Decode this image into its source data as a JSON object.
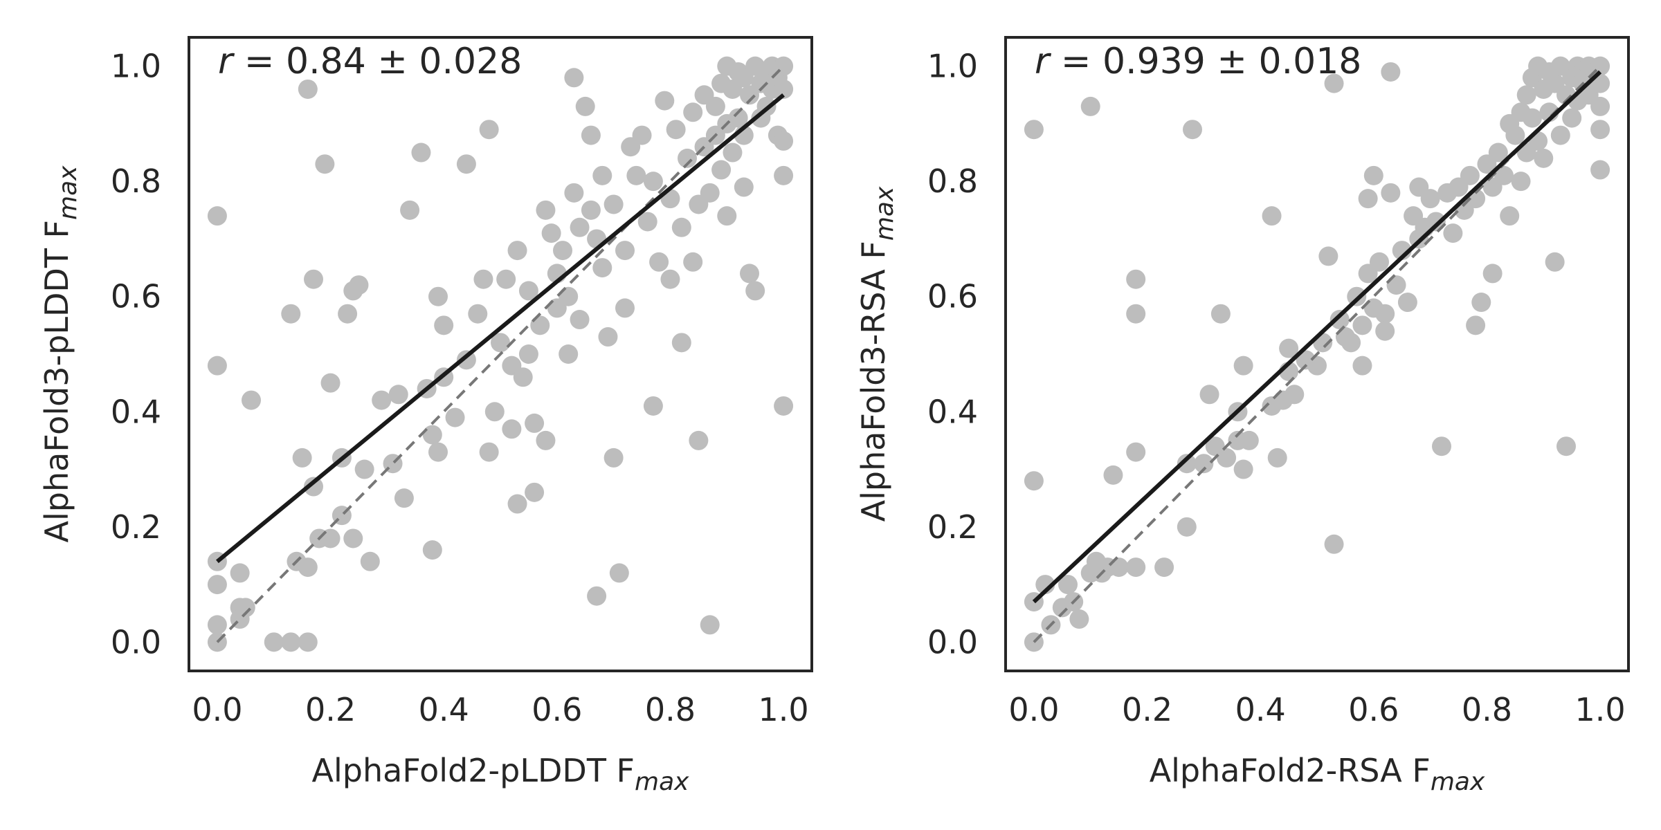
{
  "colors": {
    "point": "#bdbdbd",
    "fit_line": "#1a1a1a",
    "identity_line": "#777777",
    "axes": "#262626",
    "background": "#ffffff"
  },
  "chart_data": [
    {
      "type": "scatter",
      "xlabel_main": "AlphaFold2-pLDDT F",
      "xlabel_sub": "max",
      "ylabel_main": "AlphaFold3-pLDDT F",
      "ylabel_sub": "max",
      "annotation": "r = 0.84 ± 0.028",
      "xlim": [
        -0.05,
        1.05
      ],
      "ylim": [
        -0.05,
        1.05
      ],
      "xticks": [
        0.0,
        0.2,
        0.4,
        0.6,
        0.8,
        1.0
      ],
      "yticks": [
        0.0,
        0.2,
        0.4,
        0.6,
        0.8,
        1.0
      ],
      "xtick_labels": [
        "0.0",
        "0.2",
        "0.4",
        "0.6",
        "0.8",
        "1.0"
      ],
      "ytick_labels": [
        "0.0",
        "0.2",
        "0.4",
        "0.6",
        "0.8",
        "1.0"
      ],
      "identity_line": [
        [
          0,
          0
        ],
        [
          1,
          1
        ]
      ],
      "fit_line": [
        [
          0,
          0.14
        ],
        [
          1,
          0.95
        ]
      ],
      "grid": false,
      "points": [
        [
          0.0,
          0.74
        ],
        [
          0.0,
          0.48
        ],
        [
          0.0,
          0.14
        ],
        [
          0.0,
          0.1
        ],
        [
          0.0,
          0.03
        ],
        [
          0.0,
          0.0
        ],
        [
          0.04,
          0.12
        ],
        [
          0.04,
          0.06
        ],
        [
          0.04,
          0.04
        ],
        [
          0.05,
          0.06
        ],
        [
          0.06,
          0.42
        ],
        [
          0.1,
          0.0
        ],
        [
          0.13,
          0.0
        ],
        [
          0.16,
          0.0
        ],
        [
          0.13,
          0.57
        ],
        [
          0.14,
          0.14
        ],
        [
          0.15,
          0.32
        ],
        [
          0.16,
          0.96
        ],
        [
          0.16,
          0.13
        ],
        [
          0.17,
          0.63
        ],
        [
          0.17,
          0.27
        ],
        [
          0.18,
          0.18
        ],
        [
          0.19,
          0.83
        ],
        [
          0.2,
          0.45
        ],
        [
          0.2,
          0.18
        ],
        [
          0.22,
          0.32
        ],
        [
          0.22,
          0.22
        ],
        [
          0.23,
          0.57
        ],
        [
          0.24,
          0.61
        ],
        [
          0.25,
          0.62
        ],
        [
          0.24,
          0.18
        ],
        [
          0.26,
          0.3
        ],
        [
          0.27,
          0.14
        ],
        [
          0.29,
          0.42
        ],
        [
          0.31,
          0.31
        ],
        [
          0.32,
          0.43
        ],
        [
          0.33,
          0.25
        ],
        [
          0.34,
          0.75
        ],
        [
          0.36,
          0.85
        ],
        [
          0.37,
          0.44
        ],
        [
          0.38,
          0.16
        ],
        [
          0.38,
          0.36
        ],
        [
          0.39,
          0.6
        ],
        [
          0.39,
          0.33
        ],
        [
          0.4,
          0.55
        ],
        [
          0.4,
          0.46
        ],
        [
          0.42,
          0.39
        ],
        [
          0.44,
          0.49
        ],
        [
          0.44,
          0.83
        ],
        [
          0.46,
          0.57
        ],
        [
          0.47,
          0.63
        ],
        [
          0.48,
          0.89
        ],
        [
          0.48,
          0.33
        ],
        [
          0.49,
          0.4
        ],
        [
          0.5,
          0.52
        ],
        [
          0.51,
          0.63
        ],
        [
          0.52,
          0.48
        ],
        [
          0.52,
          0.37
        ],
        [
          0.53,
          0.68
        ],
        [
          0.53,
          0.24
        ],
        [
          0.54,
          0.46
        ],
        [
          0.55,
          0.61
        ],
        [
          0.55,
          0.5
        ],
        [
          0.56,
          0.38
        ],
        [
          0.56,
          0.26
        ],
        [
          0.57,
          0.55
        ],
        [
          0.58,
          0.35
        ],
        [
          0.58,
          0.75
        ],
        [
          0.59,
          0.71
        ],
        [
          0.6,
          0.64
        ],
        [
          0.6,
          0.58
        ],
        [
          0.61,
          0.68
        ],
        [
          0.62,
          0.6
        ],
        [
          0.62,
          0.5
        ],
        [
          0.63,
          0.98
        ],
        [
          0.63,
          0.78
        ],
        [
          0.64,
          0.72
        ],
        [
          0.64,
          0.56
        ],
        [
          0.65,
          0.93
        ],
        [
          0.66,
          0.75
        ],
        [
          0.66,
          0.88
        ],
        [
          0.67,
          0.7
        ],
        [
          0.67,
          0.08
        ],
        [
          0.68,
          0.81
        ],
        [
          0.68,
          0.65
        ],
        [
          0.69,
          0.53
        ],
        [
          0.7,
          0.76
        ],
        [
          0.7,
          0.32
        ],
        [
          0.71,
          0.12
        ],
        [
          0.72,
          0.68
        ],
        [
          0.72,
          0.58
        ],
        [
          0.73,
          0.86
        ],
        [
          0.74,
          0.81
        ],
        [
          0.75,
          0.88
        ],
        [
          0.76,
          0.73
        ],
        [
          0.77,
          0.8
        ],
        [
          0.77,
          0.41
        ],
        [
          0.78,
          0.66
        ],
        [
          0.79,
          0.94
        ],
        [
          0.8,
          0.77
        ],
        [
          0.8,
          0.63
        ],
        [
          0.81,
          0.89
        ],
        [
          0.82,
          0.72
        ],
        [
          0.82,
          0.52
        ],
        [
          0.83,
          0.84
        ],
        [
          0.84,
          0.92
        ],
        [
          0.84,
          0.66
        ],
        [
          0.85,
          0.76
        ],
        [
          0.85,
          0.35
        ],
        [
          0.86,
          0.95
        ],
        [
          0.86,
          0.86
        ],
        [
          0.87,
          0.78
        ],
        [
          0.87,
          0.03
        ],
        [
          0.88,
          0.93
        ],
        [
          0.88,
          0.88
        ],
        [
          0.89,
          0.97
        ],
        [
          0.89,
          0.82
        ],
        [
          0.9,
          1.0
        ],
        [
          0.9,
          0.9
        ],
        [
          0.9,
          0.74
        ],
        [
          0.91,
          0.96
        ],
        [
          0.91,
          0.85
        ],
        [
          0.92,
          0.99
        ],
        [
          0.92,
          0.91
        ],
        [
          0.93,
          0.98
        ],
        [
          0.93,
          0.88
        ],
        [
          0.93,
          0.79
        ],
        [
          0.94,
          0.95
        ],
        [
          0.94,
          0.64
        ],
        [
          0.95,
          1.0
        ],
        [
          0.95,
          0.61
        ],
        [
          0.96,
          0.97
        ],
        [
          0.96,
          0.91
        ],
        [
          0.97,
          0.99
        ],
        [
          0.97,
          0.93
        ],
        [
          0.98,
          1.0
        ],
        [
          0.98,
          0.96
        ],
        [
          0.99,
          0.98
        ],
        [
          0.99,
          0.88
        ],
        [
          1.0,
          1.0
        ],
        [
          1.0,
          0.96
        ],
        [
          1.0,
          0.87
        ],
        [
          1.0,
          0.81
        ],
        [
          1.0,
          0.41
        ]
      ]
    },
    {
      "type": "scatter",
      "xlabel_main": "AlphaFold2-RSA F",
      "xlabel_sub": "max",
      "ylabel_main": "AlphaFold3-RSA F",
      "ylabel_sub": "max",
      "annotation": "r = 0.939 ± 0.018",
      "xlim": [
        -0.05,
        1.05
      ],
      "ylim": [
        -0.05,
        1.05
      ],
      "xticks": [
        0.0,
        0.2,
        0.4,
        0.6,
        0.8,
        1.0
      ],
      "yticks": [
        0.0,
        0.2,
        0.4,
        0.6,
        0.8,
        1.0
      ],
      "xtick_labels": [
        "0.0",
        "0.2",
        "0.4",
        "0.6",
        "0.8",
        "1.0"
      ],
      "ytick_labels": [
        "0.0",
        "0.2",
        "0.4",
        "0.6",
        "0.8",
        "1.0"
      ],
      "identity_line": [
        [
          0,
          0
        ],
        [
          1,
          1
        ]
      ],
      "fit_line": [
        [
          0,
          0.07
        ],
        [
          1,
          0.99
        ]
      ],
      "grid": false,
      "points": [
        [
          0.0,
          0.89
        ],
        [
          0.0,
          0.28
        ],
        [
          0.0,
          0.07
        ],
        [
          0.0,
          0.0
        ],
        [
          0.02,
          0.1
        ],
        [
          0.03,
          0.03
        ],
        [
          0.05,
          0.06
        ],
        [
          0.06,
          0.1
        ],
        [
          0.07,
          0.07
        ],
        [
          0.08,
          0.04
        ],
        [
          0.1,
          0.93
        ],
        [
          0.1,
          0.12
        ],
        [
          0.11,
          0.14
        ],
        [
          0.12,
          0.12
        ],
        [
          0.13,
          0.13
        ],
        [
          0.15,
          0.13
        ],
        [
          0.14,
          0.29
        ],
        [
          0.18,
          0.63
        ],
        [
          0.18,
          0.57
        ],
        [
          0.18,
          0.13
        ],
        [
          0.18,
          0.33
        ],
        [
          0.23,
          0.13
        ],
        [
          0.27,
          0.2
        ],
        [
          0.27,
          0.31
        ],
        [
          0.28,
          0.89
        ],
        [
          0.3,
          0.31
        ],
        [
          0.31,
          0.43
        ],
        [
          0.32,
          0.34
        ],
        [
          0.33,
          0.57
        ],
        [
          0.34,
          0.32
        ],
        [
          0.36,
          0.35
        ],
        [
          0.36,
          0.4
        ],
        [
          0.37,
          0.3
        ],
        [
          0.37,
          0.48
        ],
        [
          0.38,
          0.35
        ],
        [
          0.42,
          0.41
        ],
        [
          0.42,
          0.74
        ],
        [
          0.43,
          0.32
        ],
        [
          0.44,
          0.42
        ],
        [
          0.45,
          0.51
        ],
        [
          0.45,
          0.47
        ],
        [
          0.46,
          0.43
        ],
        [
          0.48,
          0.49
        ],
        [
          0.5,
          0.48
        ],
        [
          0.51,
          0.52
        ],
        [
          0.52,
          0.67
        ],
        [
          0.53,
          0.97
        ],
        [
          0.53,
          0.17
        ],
        [
          0.54,
          0.56
        ],
        [
          0.55,
          0.53
        ],
        [
          0.56,
          0.52
        ],
        [
          0.57,
          0.6
        ],
        [
          0.58,
          0.55
        ],
        [
          0.58,
          0.48
        ],
        [
          0.59,
          0.64
        ],
        [
          0.59,
          0.77
        ],
        [
          0.6,
          0.81
        ],
        [
          0.6,
          0.58
        ],
        [
          0.61,
          0.66
        ],
        [
          0.62,
          0.57
        ],
        [
          0.62,
          0.54
        ],
        [
          0.63,
          0.99
        ],
        [
          0.63,
          0.78
        ],
        [
          0.64,
          0.62
        ],
        [
          0.65,
          0.68
        ],
        [
          0.66,
          0.59
        ],
        [
          0.67,
          0.74
        ],
        [
          0.68,
          0.7
        ],
        [
          0.68,
          0.79
        ],
        [
          0.69,
          0.72
        ],
        [
          0.7,
          0.77
        ],
        [
          0.71,
          0.73
        ],
        [
          0.72,
          0.34
        ],
        [
          0.73,
          0.78
        ],
        [
          0.74,
          0.71
        ],
        [
          0.75,
          0.79
        ],
        [
          0.76,
          0.75
        ],
        [
          0.77,
          0.81
        ],
        [
          0.78,
          0.77
        ],
        [
          0.78,
          0.55
        ],
        [
          0.79,
          0.59
        ],
        [
          0.8,
          0.83
        ],
        [
          0.81,
          0.64
        ],
        [
          0.81,
          0.79
        ],
        [
          0.82,
          0.85
        ],
        [
          0.83,
          0.81
        ],
        [
          0.84,
          0.9
        ],
        [
          0.84,
          0.74
        ],
        [
          0.85,
          0.88
        ],
        [
          0.86,
          0.92
        ],
        [
          0.86,
          0.8
        ],
        [
          0.87,
          0.95
        ],
        [
          0.87,
          0.85
        ],
        [
          0.88,
          0.91
        ],
        [
          0.88,
          0.98
        ],
        [
          0.89,
          1.0
        ],
        [
          0.89,
          0.87
        ],
        [
          0.9,
          0.96
        ],
        [
          0.9,
          0.84
        ],
        [
          0.91,
          0.99
        ],
        [
          0.91,
          0.92
        ],
        [
          0.92,
          0.97
        ],
        [
          0.92,
          0.66
        ],
        [
          0.93,
          1.0
        ],
        [
          0.93,
          0.88
        ],
        [
          0.94,
          0.95
        ],
        [
          0.94,
          0.34
        ],
        [
          0.95,
          0.98
        ],
        [
          0.95,
          0.91
        ],
        [
          0.96,
          1.0
        ],
        [
          0.96,
          0.94
        ],
        [
          0.97,
          0.97
        ],
        [
          0.97,
          0.99
        ],
        [
          0.98,
          1.0
        ],
        [
          0.98,
          0.95
        ],
        [
          0.99,
          0.98
        ],
        [
          1.0,
          1.0
        ],
        [
          1.0,
          0.97
        ],
        [
          1.0,
          0.93
        ],
        [
          1.0,
          0.89
        ],
        [
          1.0,
          0.82
        ]
      ]
    }
  ]
}
